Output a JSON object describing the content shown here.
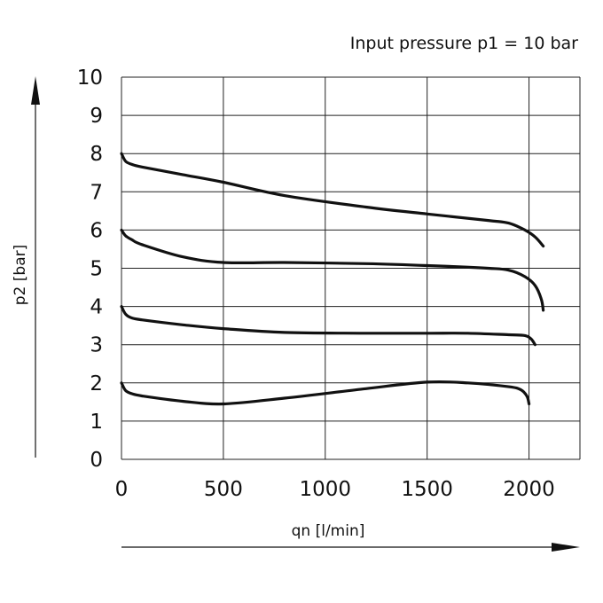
{
  "chart_data": {
    "type": "line",
    "annotation": "Input pressure p1 = 10 bar",
    "xlabel": "qn  [l/min]",
    "ylabel": "p2  [bar]",
    "xlim": [
      0,
      2250
    ],
    "ylim": [
      0,
      10
    ],
    "grid": true,
    "x_ticks": [
      "0",
      "500",
      "1000",
      "1500",
      "2000"
    ],
    "y_ticks": [
      "0",
      "1",
      "2",
      "3",
      "4",
      "5",
      "6",
      "7",
      "8",
      "9",
      "10"
    ],
    "series": [
      {
        "x": [
          0,
          20,
          50,
          100,
          300,
          500,
          800,
          1200,
          1500,
          1800,
          1900,
          1980,
          2030,
          2070
        ],
        "y": [
          8.0,
          7.8,
          7.72,
          7.65,
          7.45,
          7.25,
          6.9,
          6.6,
          6.42,
          6.25,
          6.18,
          6.0,
          5.82,
          5.58
        ]
      },
      {
        "x": [
          0,
          20,
          50,
          100,
          300,
          500,
          800,
          1200,
          1500,
          1800,
          1900,
          1980,
          2030,
          2060,
          2070
        ],
        "y": [
          6.0,
          5.85,
          5.75,
          5.62,
          5.3,
          5.15,
          5.15,
          5.12,
          5.07,
          5.0,
          4.95,
          4.78,
          4.55,
          4.2,
          3.9
        ]
      },
      {
        "x": [
          0,
          20,
          50,
          100,
          300,
          500,
          800,
          1200,
          1500,
          1700,
          1900,
          1980,
          2010,
          2030
        ],
        "y": [
          4.0,
          3.8,
          3.7,
          3.65,
          3.52,
          3.42,
          3.32,
          3.3,
          3.3,
          3.3,
          3.26,
          3.24,
          3.15,
          3.0
        ]
      },
      {
        "x": [
          0,
          20,
          50,
          100,
          300,
          500,
          800,
          1200,
          1500,
          1700,
          1900,
          1960,
          1990,
          2000
        ],
        "y": [
          2.0,
          1.8,
          1.72,
          1.66,
          1.52,
          1.45,
          1.6,
          1.85,
          2.02,
          2.0,
          1.9,
          1.82,
          1.65,
          1.45
        ]
      }
    ]
  }
}
